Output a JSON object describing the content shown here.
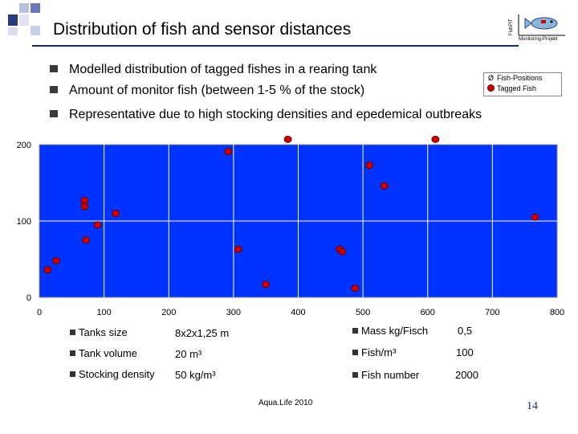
{
  "slide": {
    "title": "Distribution of fish and sensor distances",
    "logo_side_text": "FishPIT",
    "logo_caption": "Monitoring-Projekt",
    "bullets": [
      "Modelled distribution of tagged fishes in a rearing tank",
      "Amount of monitor fish (between 1-5 % of the stock)",
      "Representative due to high stocking densities and epedemical outbreaks"
    ],
    "legend": {
      "fish_positions": "Fish-Positions",
      "fish_positions_symbol": "Ø",
      "tagged_fish": "Tagged Fish"
    },
    "info_left": [
      {
        "label": "Tanks size",
        "value": "8x2x1,25 m"
      },
      {
        "label": "Tank volume",
        "value": "20 m³"
      },
      {
        "label": "Stocking density",
        "value": "50 kg/m³"
      }
    ],
    "info_right": [
      {
        "label": "Mass kg/Fisch",
        "value": "0,5"
      },
      {
        "label": "Fish/m³",
        "value": "100"
      },
      {
        "label": "Fish number",
        "value": "2000"
      }
    ],
    "footer": "Aqua.Life 2010",
    "page_number": "14"
  },
  "colors": {
    "plot_background": "#0033ff",
    "grid": "#ffffff",
    "marker": "#cc0000",
    "marker_edge": "#660000",
    "title_rule": "#1a2a66"
  },
  "chart_data": {
    "type": "scatter",
    "title": "",
    "xlabel": "",
    "ylabel": "",
    "xlim": [
      0,
      800
    ],
    "ylim": [
      0,
      200
    ],
    "x_ticks": [
      "0",
      "100",
      "200",
      "300",
      "400",
      "500",
      "600",
      "700",
      "800"
    ],
    "y_ticks": [
      "0",
      "100",
      "200"
    ],
    "grid": true,
    "series": [
      {
        "name": "Tagged Fish",
        "points": [
          [
            13,
            36
          ],
          [
            26,
            48
          ],
          [
            70,
            127
          ],
          [
            70,
            119
          ],
          [
            72,
            75
          ],
          [
            90,
            95
          ],
          [
            118,
            110
          ],
          [
            307,
            63
          ],
          [
            350,
            17
          ],
          [
            384,
            207
          ],
          [
            464,
            63
          ],
          [
            468,
            60
          ],
          [
            488,
            12
          ],
          [
            510,
            173
          ],
          [
            533,
            146
          ],
          [
            612,
            207
          ],
          [
            766,
            105
          ],
          [
            292,
            191
          ]
        ]
      }
    ]
  }
}
